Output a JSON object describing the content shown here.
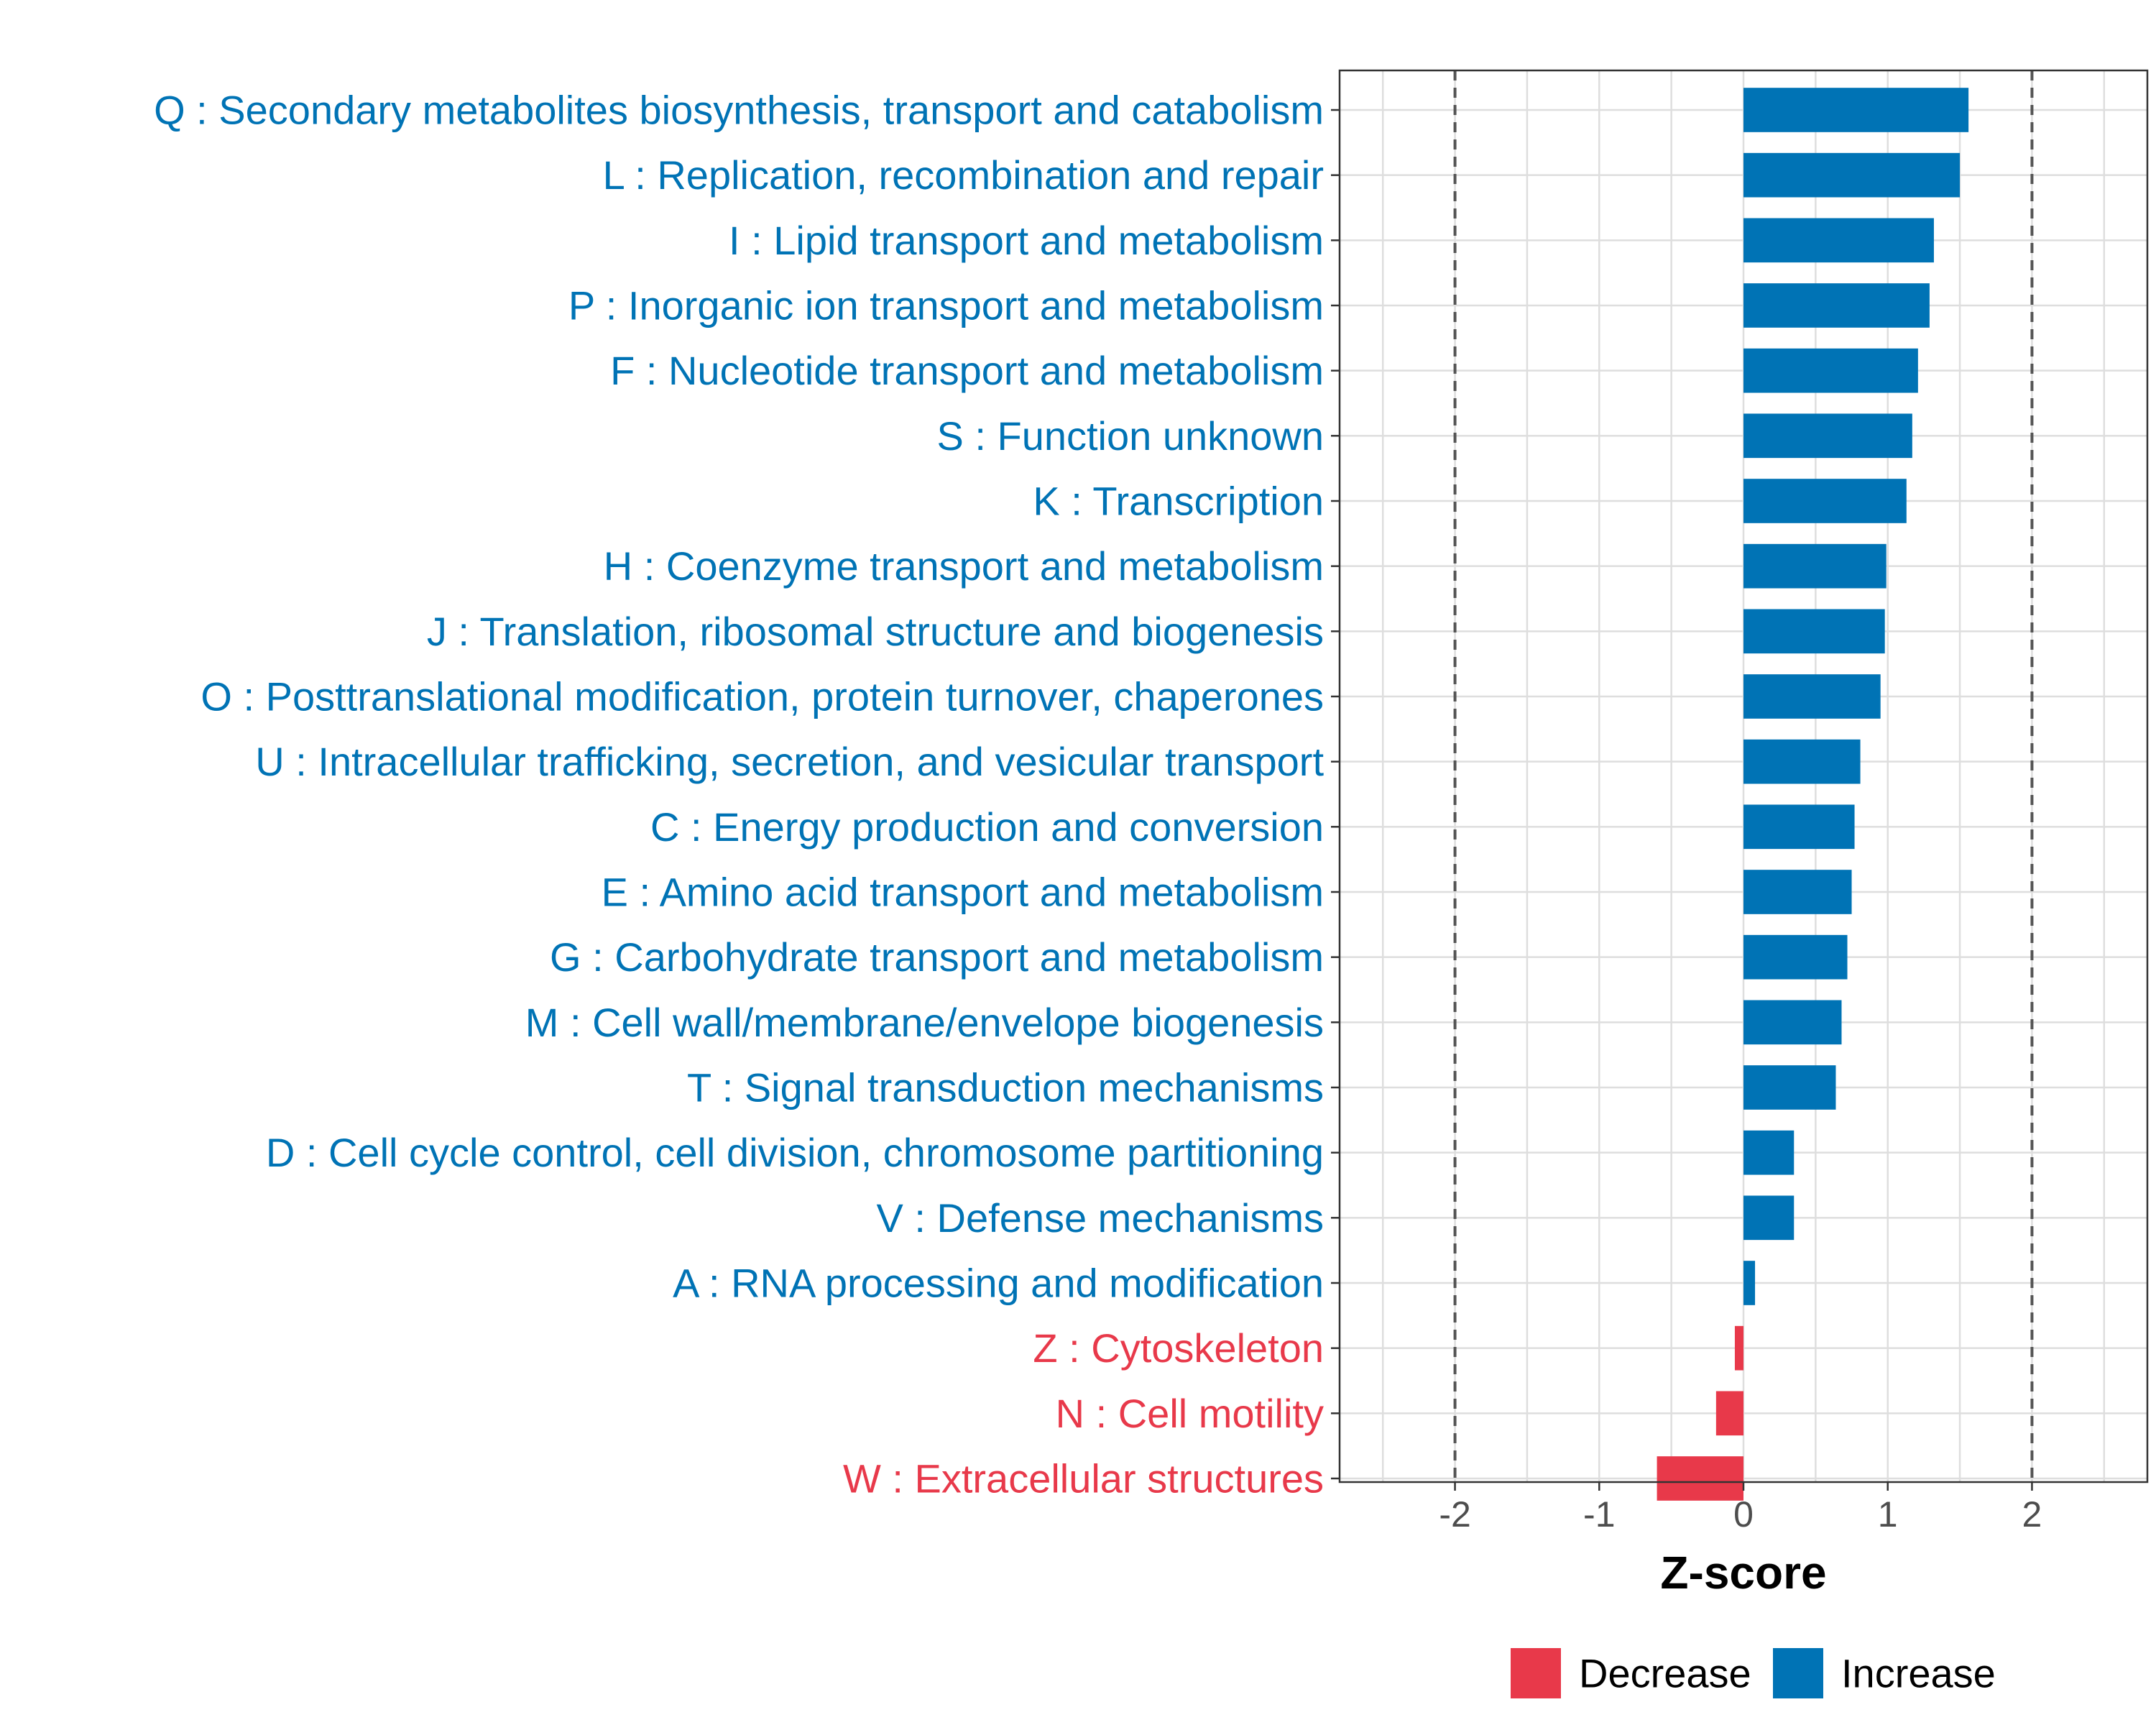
{
  "chart_data": {
    "type": "bar",
    "orientation": "horizontal",
    "title": "",
    "xlabel": "Z-score",
    "ylabel": "",
    "xlim": [
      -2.8,
      2.8
    ],
    "xticks": [
      -2,
      -1,
      0,
      1,
      2
    ],
    "xtick_labels": [
      "-2",
      "-1",
      "0",
      "1",
      "2"
    ],
    "threshold_lines": [
      -2,
      2
    ],
    "grid": true,
    "categories": [
      "Q : Secondary metabolites biosynthesis, transport and catabolism",
      "L : Replication, recombination and repair",
      "I : Lipid transport and metabolism",
      "P : Inorganic ion transport and metabolism",
      "F : Nucleotide transport and metabolism",
      "S : Function unknown",
      "K : Transcription",
      "H : Coenzyme transport and metabolism",
      "J : Translation, ribosomal structure and biogenesis",
      "O : Posttranslational modification, protein turnover, chaperones",
      "U : Intracellular trafficking, secretion, and vesicular transport",
      "C : Energy production and conversion",
      "E : Amino acid transport and metabolism",
      "G : Carbohydrate transport and metabolism",
      "M : Cell wall/membrane/envelope biogenesis",
      "T : Signal transduction mechanisms",
      "D : Cell cycle control, cell division, chromosome partitioning",
      "V : Defense mechanisms",
      "A : RNA processing and modification",
      "Z : Cytoskeleton",
      "N : Cell motility",
      "W : Extracellular structures"
    ],
    "values": [
      1.56,
      1.5,
      1.32,
      1.29,
      1.21,
      1.17,
      1.13,
      0.99,
      0.98,
      0.95,
      0.81,
      0.77,
      0.75,
      0.72,
      0.68,
      0.64,
      0.35,
      0.35,
      0.08,
      -0.06,
      -0.19,
      -0.6
    ],
    "groups": [
      "Increase",
      "Increase",
      "Increase",
      "Increase",
      "Increase",
      "Increase",
      "Increase",
      "Increase",
      "Increase",
      "Increase",
      "Increase",
      "Increase",
      "Increase",
      "Increase",
      "Increase",
      "Increase",
      "Increase",
      "Increase",
      "Increase",
      "Decrease",
      "Decrease",
      "Decrease"
    ],
    "legend": {
      "position": "bottom",
      "entries": [
        {
          "label": "Decrease",
          "color": "#e8394a"
        },
        {
          "label": "Increase",
          "color": "#0073b5"
        }
      ]
    }
  }
}
